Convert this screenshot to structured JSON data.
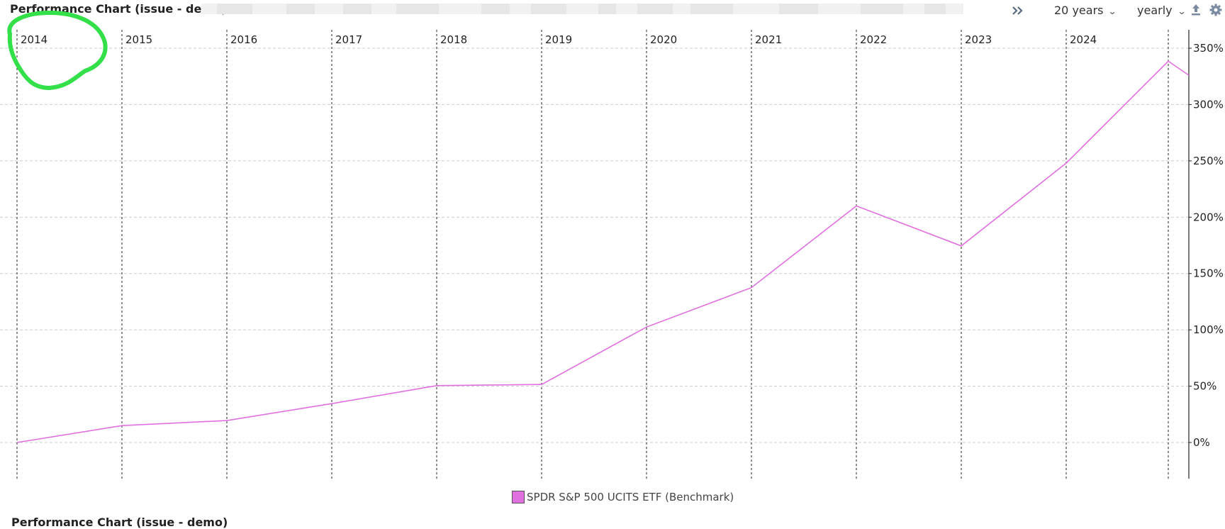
{
  "header": {
    "title": "Performance Chart (issue - demo)",
    "period_label": "20 years",
    "interval_label": "yearly"
  },
  "icons": {
    "expand": "double-chevron-right-icon",
    "period_dropdown": "chevron-down-icon",
    "interval_dropdown": "chevron-down-icon",
    "export": "upload-icon",
    "settings": "gear-icon"
  },
  "colors": {
    "series": "#e070e0",
    "annotation": "#33e04a",
    "grid": "#cccccc",
    "year_line": "#222222"
  },
  "legend": {
    "label": "SPDR S&P 500 UCITS ETF (Benchmark)"
  },
  "footer": {
    "title": "Performance Chart (issue - demo)"
  },
  "chart_data": {
    "type": "line",
    "title": "",
    "xlabel": "",
    "ylabel": "",
    "x_ticks": [
      "2014",
      "2015",
      "2016",
      "2017",
      "2018",
      "2019",
      "2020",
      "2021",
      "2022",
      "2023",
      "2024"
    ],
    "y_ticks": [
      "0%",
      "50%",
      "100%",
      "150%",
      "200%",
      "250%",
      "300%",
      "350%"
    ],
    "ylim": [
      -16,
      365
    ],
    "grid": true,
    "y_axis_position": "right",
    "legend_position": "bottom-center",
    "series": [
      {
        "name": "SPDR S&P 500 UCITS ETF (Benchmark)",
        "x": [
          "2014",
          "2015",
          "2016",
          "2017",
          "2018",
          "2019",
          "2020",
          "2021",
          "2022",
          "2023",
          "2024",
          "2025",
          "2025-03"
        ],
        "values": [
          0,
          15,
          19.5,
          34.5,
          50.5,
          51.5,
          102.5,
          137.5,
          210,
          174.5,
          248,
          338.5,
          326
        ]
      }
    ]
  }
}
